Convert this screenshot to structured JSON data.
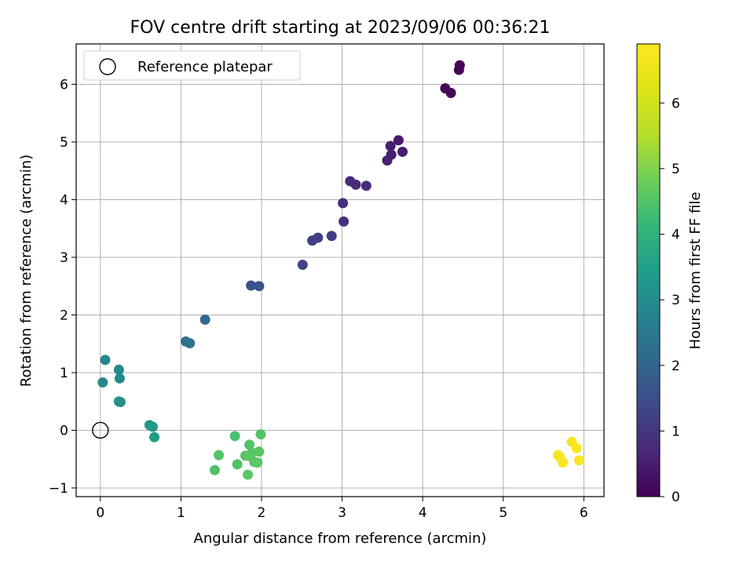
{
  "chart_data": {
    "type": "scatter",
    "title": "FOV centre drift starting at 2023/09/06 00:36:21",
    "xlabel": "Angular distance from reference (arcmin)",
    "ylabel": "Rotation from reference (arcmin)",
    "xlim": [
      -0.3,
      6.25
    ],
    "ylim": [
      -1.15,
      6.7
    ],
    "xticks": [
      0,
      1,
      2,
      3,
      4,
      5,
      6
    ],
    "yticks": [
      -1,
      0,
      1,
      2,
      3,
      4,
      5,
      6
    ],
    "grid": true,
    "legend": {
      "position": "top-left",
      "entries": [
        "Reference platepar"
      ]
    },
    "reference_point": {
      "x": 0,
      "y": 0,
      "label": "Reference platepar"
    },
    "colorbar": {
      "label": "Hours from first FF file",
      "min": 0,
      "max": 6.9,
      "ticks": [
        0,
        1,
        2,
        3,
        4,
        5,
        6
      ],
      "colormap": "viridis"
    },
    "points": [
      {
        "x": 4.46,
        "y": 6.33,
        "c": 0.0
      },
      {
        "x": 4.45,
        "y": 6.25,
        "c": 0.05
      },
      {
        "x": 4.28,
        "y": 5.93,
        "c": 0.1
      },
      {
        "x": 4.35,
        "y": 5.85,
        "c": 0.15
      },
      {
        "x": 3.7,
        "y": 5.03,
        "c": 0.45
      },
      {
        "x": 3.6,
        "y": 4.93,
        "c": 0.5
      },
      {
        "x": 3.75,
        "y": 4.83,
        "c": 0.5
      },
      {
        "x": 3.61,
        "y": 4.78,
        "c": 0.55
      },
      {
        "x": 3.56,
        "y": 4.68,
        "c": 0.55
      },
      {
        "x": 3.1,
        "y": 4.32,
        "c": 0.75
      },
      {
        "x": 3.17,
        "y": 4.26,
        "c": 0.75
      },
      {
        "x": 3.3,
        "y": 4.24,
        "c": 0.8
      },
      {
        "x": 3.01,
        "y": 3.94,
        "c": 0.85
      },
      {
        "x": 3.02,
        "y": 3.62,
        "c": 0.9
      },
      {
        "x": 2.87,
        "y": 3.37,
        "c": 1.1
      },
      {
        "x": 2.7,
        "y": 3.34,
        "c": 1.15
      },
      {
        "x": 2.63,
        "y": 3.29,
        "c": 1.15
      },
      {
        "x": 2.51,
        "y": 2.87,
        "c": 1.3
      },
      {
        "x": 1.87,
        "y": 2.51,
        "c": 1.6
      },
      {
        "x": 1.97,
        "y": 2.5,
        "c": 1.6
      },
      {
        "x": 1.3,
        "y": 1.92,
        "c": 2.1
      },
      {
        "x": 1.06,
        "y": 1.54,
        "c": 2.3
      },
      {
        "x": 1.11,
        "y": 1.51,
        "c": 2.35
      },
      {
        "x": 0.06,
        "y": 1.22,
        "c": 2.9
      },
      {
        "x": 0.23,
        "y": 1.05,
        "c": 2.9
      },
      {
        "x": 0.24,
        "y": 0.9,
        "c": 2.95
      },
      {
        "x": 0.03,
        "y": 0.83,
        "c": 2.95
      },
      {
        "x": 0.23,
        "y": 0.5,
        "c": 3.1
      },
      {
        "x": 0.25,
        "y": 0.49,
        "c": 3.1
      },
      {
        "x": 0.61,
        "y": 0.09,
        "c": 3.3
      },
      {
        "x": 0.65,
        "y": 0.06,
        "c": 3.3
      },
      {
        "x": 0.67,
        "y": -0.12,
        "c": 3.4
      },
      {
        "x": 1.67,
        "y": -0.1,
        "c": 4.4
      },
      {
        "x": 1.99,
        "y": -0.07,
        "c": 4.5
      },
      {
        "x": 1.85,
        "y": -0.25,
        "c": 4.5
      },
      {
        "x": 1.97,
        "y": -0.37,
        "c": 4.55
      },
      {
        "x": 1.88,
        "y": -0.39,
        "c": 4.55
      },
      {
        "x": 1.47,
        "y": -0.43,
        "c": 4.5
      },
      {
        "x": 1.8,
        "y": -0.44,
        "c": 4.55
      },
      {
        "x": 1.86,
        "y": -0.45,
        "c": 4.6
      },
      {
        "x": 1.91,
        "y": -0.55,
        "c": 4.6
      },
      {
        "x": 1.95,
        "y": -0.56,
        "c": 4.6
      },
      {
        "x": 1.7,
        "y": -0.59,
        "c": 4.5
      },
      {
        "x": 1.42,
        "y": -0.69,
        "c": 4.45
      },
      {
        "x": 1.83,
        "y": -0.77,
        "c": 4.6
      },
      {
        "x": 5.85,
        "y": -0.2,
        "c": 6.8
      },
      {
        "x": 5.91,
        "y": -0.31,
        "c": 6.8
      },
      {
        "x": 5.68,
        "y": -0.43,
        "c": 6.75
      },
      {
        "x": 5.7,
        "y": -0.46,
        "c": 6.75
      },
      {
        "x": 5.94,
        "y": -0.52,
        "c": 6.85
      },
      {
        "x": 5.74,
        "y": -0.56,
        "c": 6.8
      }
    ]
  }
}
